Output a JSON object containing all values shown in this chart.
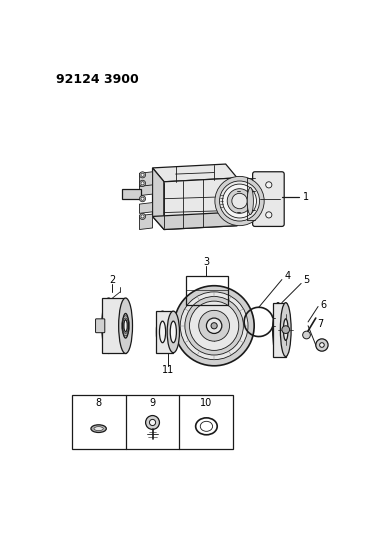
{
  "background_color": "#ffffff",
  "diagram_id": "92124 3900",
  "text_color": "#000000",
  "line_color": "#000000",
  "draw_color": "#1a1a1a",
  "fill_light": "#e8e8e8",
  "fill_mid": "#d0d0d0",
  "fill_dark": "#b0b0b0",
  "fill_white": "#f5f5f5"
}
